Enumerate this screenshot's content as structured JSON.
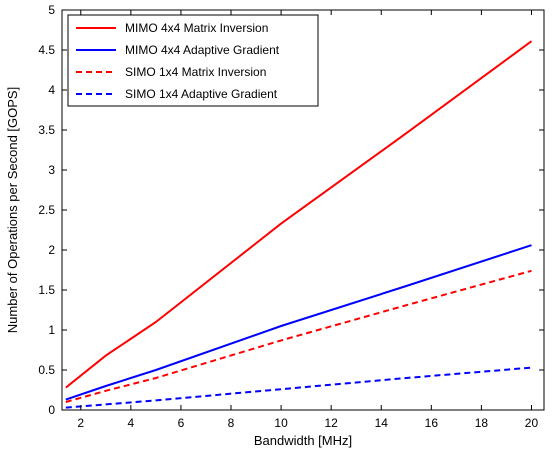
{
  "chart_data": {
    "type": "line",
    "xlabel": "Bandwidth [MHz]",
    "ylabel": "Number of Operations per Second [GOPS]",
    "xlim": [
      1.25,
      20.5
    ],
    "ylim": [
      0,
      5
    ],
    "xticks": [
      2,
      4,
      6,
      8,
      10,
      12,
      14,
      16,
      18,
      20
    ],
    "yticks": [
      0,
      0.5,
      1,
      1.5,
      2,
      2.5,
      3,
      3.5,
      4,
      4.5,
      5
    ],
    "xtick_labels": [
      "2",
      "4",
      "6",
      "8",
      "10",
      "12",
      "14",
      "16",
      "18",
      "20"
    ],
    "ytick_labels": [
      "0",
      "0.5",
      "1",
      "1.5",
      "2",
      "2.5",
      "3",
      "3.5",
      "4",
      "4.5",
      "5"
    ],
    "grid": false,
    "legend_position": "top-left",
    "series": [
      {
        "name": "MIMO 4x4 Matrix Inversion",
        "color": "#ff0000",
        "dash": "solid",
        "x": [
          1.4,
          3,
          5,
          10,
          15,
          20
        ],
        "y": [
          0.28,
          0.68,
          1.1,
          2.33,
          3.46,
          4.61
        ]
      },
      {
        "name": "MIMO 4x4 Adaptive Gradient",
        "color": "#0000ff",
        "dash": "solid",
        "x": [
          1.4,
          3,
          5,
          10,
          15,
          20
        ],
        "y": [
          0.13,
          0.3,
          0.5,
          1.05,
          1.55,
          2.06
        ]
      },
      {
        "name": "SIMO 1x4 Matrix Inversion",
        "color": "#ff0000",
        "dash": "dashed",
        "x": [
          1.4,
          3,
          5,
          10,
          15,
          20
        ],
        "y": [
          0.1,
          0.24,
          0.4,
          0.87,
          1.31,
          1.74
        ]
      },
      {
        "name": "SIMO 1x4 Adaptive Gradient",
        "color": "#0000ff",
        "dash": "dashed",
        "x": [
          1.4,
          3,
          5,
          10,
          15,
          20
        ],
        "y": [
          0.03,
          0.07,
          0.12,
          0.26,
          0.4,
          0.53
        ]
      }
    ]
  }
}
